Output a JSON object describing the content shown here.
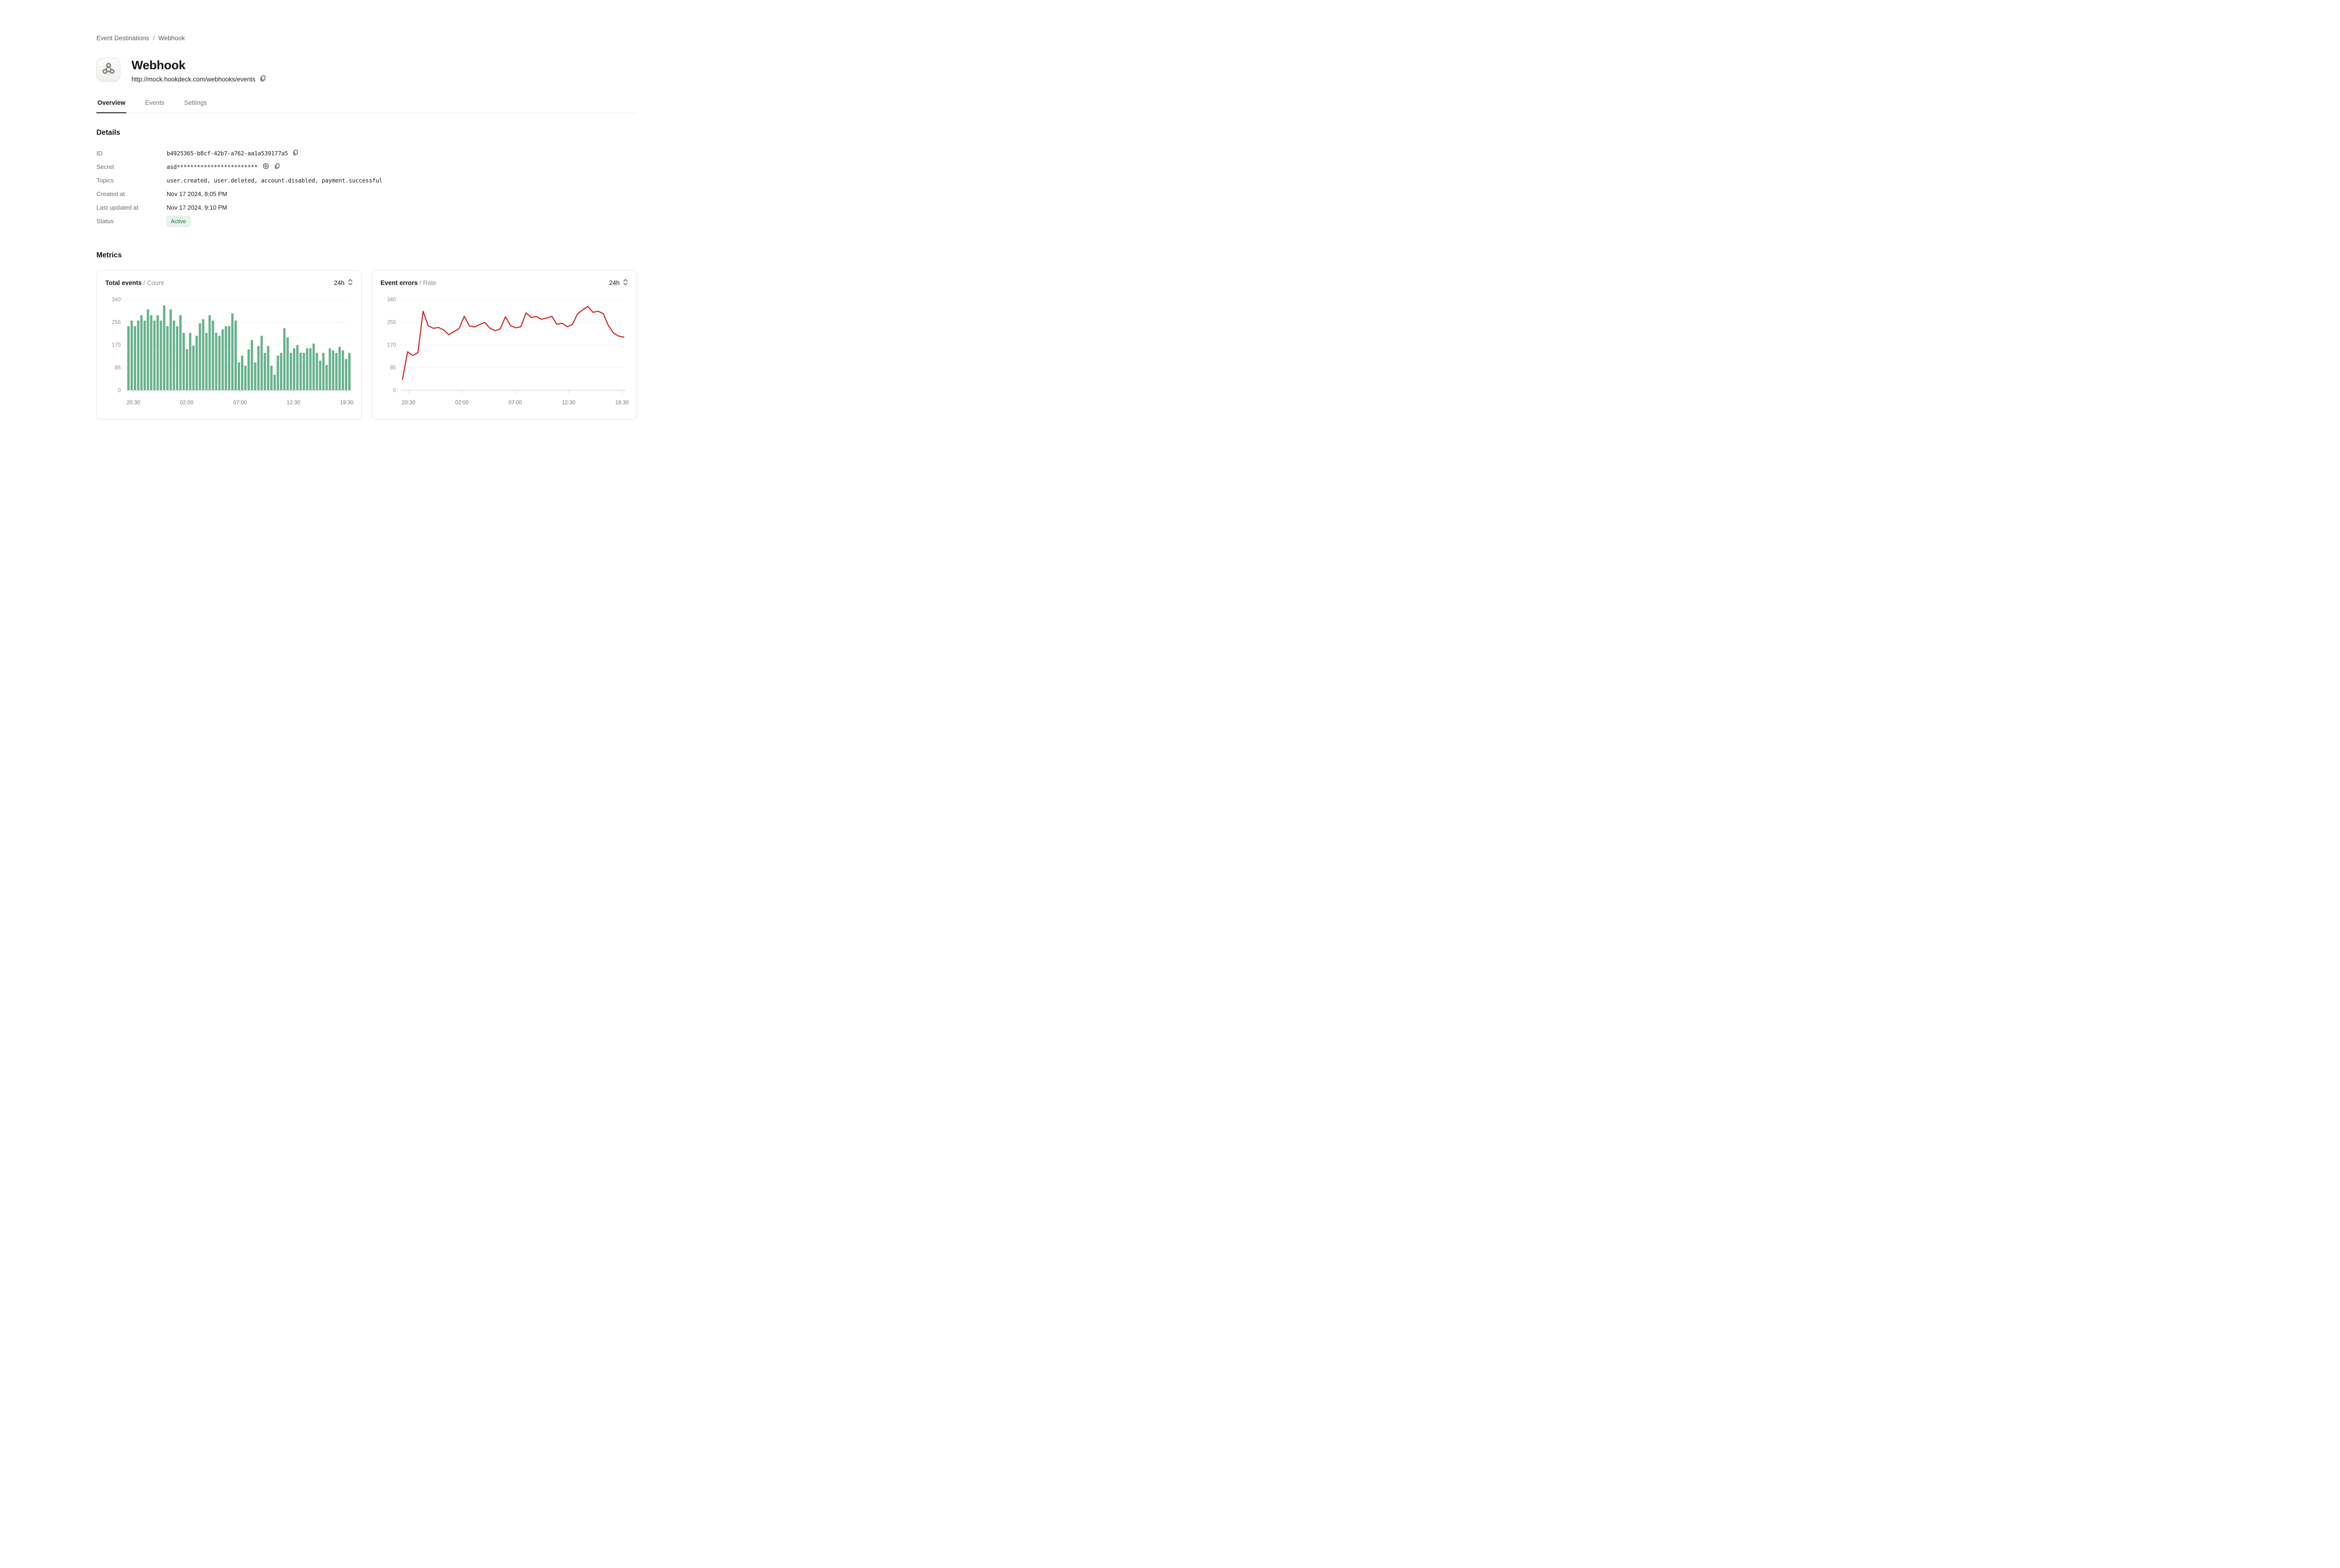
{
  "breadcrumb": {
    "items": [
      "Event Destinations",
      "Webhook"
    ],
    "separator": "/"
  },
  "header": {
    "title": "Webhook",
    "url": "http://mock.hookdeck.com/webhooks/events",
    "icon": "webhook-icon"
  },
  "tabs": [
    {
      "label": "Overview",
      "active": true
    },
    {
      "label": "Events",
      "active": false
    },
    {
      "label": "Settings",
      "active": false
    }
  ],
  "details": {
    "heading": "Details",
    "id_label": "ID",
    "id_value": "b4925365-b8cf-42b7-a762-aa1a539177a5",
    "secret_label": "Secret",
    "secret_value": "asd************************",
    "topics_label": "Topics",
    "topics_value": "user.created, user.deleted, account.disabled, payment.successful",
    "created_label": "Created at",
    "created_value": "Nov 17 2024, 8:05 PM",
    "updated_label": "Last updated at",
    "updated_value": "Nov 17 2024, 9:10 PM",
    "status_label": "Status",
    "status_value": "Active",
    "status_colors": {
      "text": "#15733c",
      "background": "#e9f3ec",
      "border": "#d7e8dd"
    }
  },
  "metrics": {
    "heading": "Metrics"
  },
  "chart_data": [
    {
      "type": "bar",
      "title": "Total events",
      "subtitle": "/ Count",
      "range": "24h",
      "color": "#67b28d",
      "grid": "dashed",
      "legend_position": "none",
      "ylim": [
        0,
        340
      ],
      "y_ticks": [
        0,
        85,
        170,
        255,
        340
      ],
      "x_ticks": [
        "20:30",
        "02:00",
        "07:00",
        "12:30",
        "19:30"
      ],
      "values": [
        240,
        261,
        240,
        261,
        281,
        261,
        303,
        281,
        261,
        281,
        261,
        318,
        240,
        303,
        261,
        240,
        281,
        215,
        154,
        215,
        167,
        204,
        251,
        266,
        215,
        281,
        261,
        215,
        204,
        228,
        240,
        240,
        288,
        261,
        104,
        130,
        92,
        153,
        188,
        104,
        166,
        204,
        140,
        166,
        92,
        58,
        130,
        140,
        232,
        198,
        140,
        157,
        169,
        140,
        140,
        157,
        157,
        175,
        140,
        111,
        140,
        95,
        157,
        149,
        140,
        163,
        149,
        117,
        140
      ]
    },
    {
      "type": "line",
      "title": "Event errors",
      "subtitle": "/ Rate",
      "range": "24h",
      "color": "#d0241b",
      "grid": "dashed",
      "legend_position": "none",
      "ylim": [
        0,
        340
      ],
      "y_ticks": [
        0,
        85,
        170,
        255,
        340
      ],
      "x_ticks": [
        "20:30",
        "02:00",
        "07:00",
        "12:30",
        "19:30"
      ],
      "values": [
        41,
        144,
        130,
        141,
        296,
        241,
        232,
        235,
        226,
        208,
        220,
        231,
        277,
        241,
        237,
        246,
        254,
        232,
        223,
        230,
        275,
        242,
        234,
        238,
        290,
        273,
        276,
        266,
        270,
        277,
        247,
        251,
        238,
        246,
        286,
        301,
        314,
        292,
        296,
        287,
        242,
        214,
        203,
        199
      ]
    }
  ]
}
